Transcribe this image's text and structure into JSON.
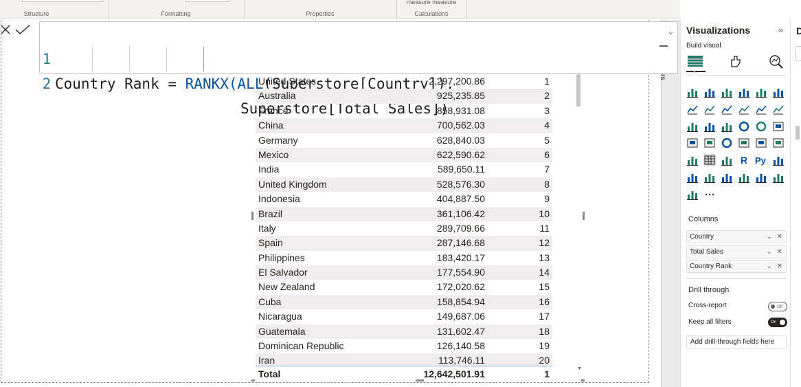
{
  "ribbon": {
    "groups": [
      "Structure",
      "Formatting",
      "Properties",
      "Calculations"
    ],
    "measure_labels": "measure measure"
  },
  "formula_bar": {
    "line1_number": "1",
    "line1_name": "Country Rank = ",
    "line1_fn1": "RANKX",
    "line1_paren1": "(",
    "line1_fn2": "ALL",
    "line1_rest": "(Superstore[Country]),",
    "line2_number": "2",
    "line2_code": "Superstore[Total Sales])"
  },
  "table": {
    "rows": [
      {
        "country": "United States",
        "sales": "2,297,200.86",
        "rank": "1"
      },
      {
        "country": "Australia",
        "sales": "925,235.85",
        "rank": "2"
      },
      {
        "country": "France",
        "sales": "858,931.08",
        "rank": "3"
      },
      {
        "country": "China",
        "sales": "700,562.03",
        "rank": "4"
      },
      {
        "country": "Germany",
        "sales": "628,840.03",
        "rank": "5"
      },
      {
        "country": "Mexico",
        "sales": "622,590.62",
        "rank": "6"
      },
      {
        "country": "India",
        "sales": "589,650.11",
        "rank": "7"
      },
      {
        "country": "United Kingdom",
        "sales": "528,576.30",
        "rank": "8"
      },
      {
        "country": "Indonesia",
        "sales": "404,887.50",
        "rank": "9"
      },
      {
        "country": "Brazil",
        "sales": "361,106.42",
        "rank": "10"
      },
      {
        "country": "Italy",
        "sales": "289,709.66",
        "rank": "11"
      },
      {
        "country": "Spain",
        "sales": "287,146.68",
        "rank": "12"
      },
      {
        "country": "Philippines",
        "sales": "183,420.17",
        "rank": "13"
      },
      {
        "country": "El Salvador",
        "sales": "177,554.90",
        "rank": "14"
      },
      {
        "country": "New Zealand",
        "sales": "172,020.62",
        "rank": "15"
      },
      {
        "country": "Cuba",
        "sales": "158,854.94",
        "rank": "16"
      },
      {
        "country": "Nicaragua",
        "sales": "149,687.06",
        "rank": "17"
      },
      {
        "country": "Guatemala",
        "sales": "131,602.47",
        "rank": "18"
      },
      {
        "country": "Dominican Republic",
        "sales": "126,140.58",
        "rank": "19"
      },
      {
        "country": "Iran",
        "sales": "113,746.11",
        "rank": "20"
      }
    ],
    "total": {
      "label": "Total",
      "sales": "12,642,501.91",
      "rank": "1"
    }
  },
  "filters_label": "rs",
  "viz_pane": {
    "title": "Visualizations",
    "build_visual": "Build visual",
    "columns_label": "Columns",
    "wells": [
      "Country",
      "Total Sales",
      "Country Rank"
    ],
    "drill_through": "Drill through",
    "cross_report": "Cross-report",
    "cross_report_state": "Off",
    "keep_all_filters": "Keep all filters",
    "keep_all_filters_state": "On",
    "add_drill_field": "Add drill-through fields here",
    "icons": [
      "stacked-bar-chart-icon",
      "stacked-column-chart-icon",
      "clustered-bar-chart-icon",
      "clustered-column-chart-icon",
      "100-stacked-bar-chart-icon",
      "100-stacked-column-chart-icon",
      "line-chart-icon",
      "area-chart-icon",
      "stacked-area-chart-icon",
      "line-and-column-chart-icon",
      "line-and-clustered-column-chart-icon",
      "ribbon-chart-icon",
      "waterfall-chart-icon",
      "funnel-chart-icon",
      "scatter-chart-icon",
      "pie-chart-icon",
      "donut-chart-icon",
      "treemap-icon",
      "map-icon",
      "filled-map-icon",
      "gauge-icon",
      "card-icon",
      "multi-row-card-icon",
      "kpi-icon",
      "slicer-icon",
      "table-icon",
      "matrix-icon",
      "r-visual-icon",
      "python-visual-icon",
      "key-influencers-icon",
      "decomposition-tree-icon",
      "qa-icon",
      "smart-narrative-icon",
      "metrics-icon",
      "paginated-report-icon",
      "power-apps-icon",
      "power-automate-icon",
      "more-visuals-icon"
    ]
  },
  "far_right_label": "D",
  "colors": {
    "accent": "#0451a5",
    "line_number": "#237893",
    "row_band": "#efeded"
  }
}
